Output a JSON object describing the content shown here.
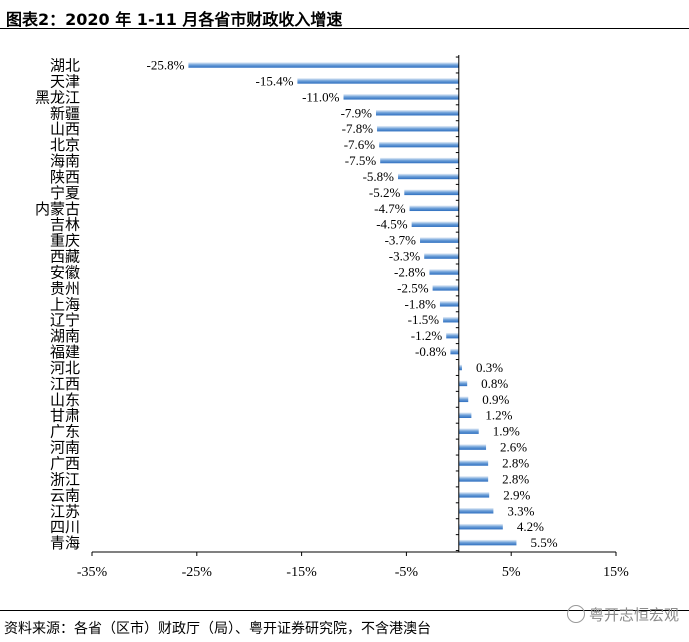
{
  "header": {
    "title": "图表2：2020 年 1-11 月各省市财政收入增速"
  },
  "footer": {
    "source": "资料来源：各省（区市）财政厅（局）、粤开证券研究院，不含港澳台",
    "watermark": "粤开志恒宏观"
  },
  "colors": {
    "bar_light": "#eaf1f9",
    "bar_dark": "#2e6fc0",
    "axis": "#000000"
  },
  "chart_data": {
    "type": "bar",
    "orientation": "horizontal",
    "title": "2020 年 1-11 月各省市财政收入增速",
    "xlabel": "",
    "ylabel": "",
    "xlim": [
      -35,
      15
    ],
    "xticks": [
      -35,
      -25,
      -15,
      -5,
      5,
      15
    ],
    "xtick_labels": [
      "-35%",
      "-25%",
      "-15%",
      "-5%",
      "5%",
      "15%"
    ],
    "categories": [
      "湖北",
      "天津",
      "黑龙江",
      "新疆",
      "山西",
      "北京",
      "海南",
      "陕西",
      "宁夏",
      "内蒙古",
      "吉林",
      "重庆",
      "西藏",
      "安徽",
      "贵州",
      "上海",
      "辽宁",
      "湖南",
      "福建",
      "河北",
      "江西",
      "山东",
      "甘肃",
      "广东",
      "河南",
      "广西",
      "浙江",
      "云南",
      "江苏",
      "四川",
      "青海"
    ],
    "values": [
      -25.8,
      -15.4,
      -11.0,
      -7.9,
      -7.8,
      -7.6,
      -7.5,
      -5.8,
      -5.2,
      -4.7,
      -4.5,
      -3.7,
      -3.3,
      -2.8,
      -2.5,
      -1.8,
      -1.5,
      -1.2,
      -0.8,
      0.3,
      0.8,
      0.9,
      1.2,
      1.9,
      2.6,
      2.8,
      2.8,
      2.9,
      3.3,
      4.2,
      5.5
    ],
    "value_labels": [
      "-25.8%",
      "-15.4%",
      "-11.0%",
      "-7.9%",
      "-7.8%",
      "-7.6%",
      "-7.5%",
      "-5.8%",
      "-5.2%",
      "-4.7%",
      "-4.5%",
      "-3.7%",
      "-3.3%",
      "-2.8%",
      "-2.5%",
      "-1.8%",
      "-1.5%",
      "-1.2%",
      "-0.8%",
      "0.3%",
      "0.8%",
      "0.9%",
      "1.2%",
      "1.9%",
      "2.6%",
      "2.8%",
      "2.8%",
      "2.9%",
      "3.3%",
      "4.2%",
      "5.5%"
    ],
    "legend": "none",
    "grid": false
  }
}
